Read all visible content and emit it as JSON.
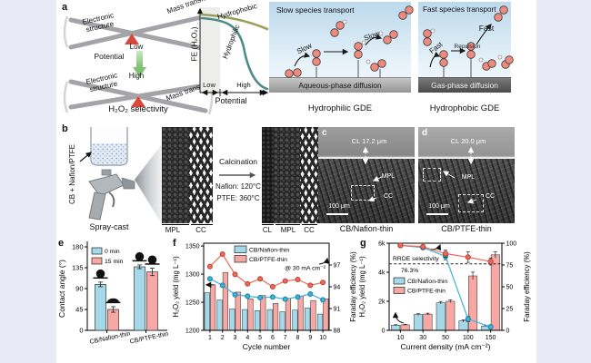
{
  "colors": {
    "bar_blue": "#a5d9ea",
    "bar_pink": "#f8a8a4",
    "line_blue": "#3eb1d5",
    "line_red": "#ec6a5e",
    "triangle_red": "#d8493c",
    "arrow_green": "#7fc172",
    "curve_olive": "#9aa05b",
    "curve_teal": "#4f8c88",
    "background": "#e8eaf5"
  },
  "figure": {
    "a": {
      "tag": "a",
      "seesaw": {
        "electronic_top": "Electronic structure",
        "mass_top": "Mass transfer",
        "low": "Low",
        "potential": "Potential",
        "high": "High",
        "electronic_bottom": "Electronic structure",
        "mass_bottom": "Mass transfer",
        "caption": "H₂O₂ selectivity"
      },
      "philic": {
        "title": "Slow species transport",
        "slow_a": "Slow",
        "slow_b": "Slow",
        "substrate": "Aqueous-phase diffusion",
        "caption": "Hydrophilic GDE"
      },
      "phobic": {
        "title": "Fast species transport",
        "fast_a": "Fast",
        "fast_b": "Fast",
        "repulsion": "Repulsion",
        "substrate": "Gas-phase diffusion",
        "caption": "Hydrophobic GDE"
      }
    },
    "b": {
      "tag": "b",
      "ink": "CB + Nafion/PTFE",
      "method": "Spray-cast",
      "calcination": "Calcination",
      "nafion": "Nafion: 120°C",
      "ptfe": "PTFE: 360°C",
      "s1_mpl": "MPL",
      "s1_cc": "CC",
      "s2_cl": "CL",
      "s2_mpl": "MPL",
      "s2_cc": "CC"
    },
    "c": {
      "tag": "c",
      "cl": "CL 17.2 μm",
      "mpl": "MPL",
      "cc": "CC",
      "scalebar": "100 μm",
      "caption": "CB/Nafion-thin"
    },
    "d": {
      "tag": "d",
      "cl": "CL 20.0 μm",
      "mpl": "MPL",
      "cc": "CC",
      "scalebar": "100 μm",
      "caption": "CB/PTFE-thin"
    },
    "e_tag": "e",
    "f_tag": "f",
    "g_tag": "g"
  },
  "chart_data": [
    {
      "id": "potential-fe-sketch",
      "type": "line",
      "ylabel": "FE (H₂O₂)",
      "xlabel": "Potential",
      "x_range_labels": [
        "Low",
        "High"
      ],
      "series": [
        {
          "name": "Hydrophobic",
          "color": "#9aa05b",
          "trend": "stays high, slight decline"
        },
        {
          "name": "Hydrophilic",
          "color": "#4f8c88",
          "trend": "sigmoidal drop at high potential"
        }
      ]
    },
    {
      "id": "e",
      "type": "bar",
      "ylabel": "Contact angle (°)",
      "ylim": [
        0,
        180
      ],
      "yticks": [
        0,
        45,
        90,
        135,
        180
      ],
      "categories": [
        "CB/Nafion-thin",
        "CB/PTFE-thin"
      ],
      "series": [
        {
          "name": "0 min",
          "color": "#a5d9ea",
          "values": [
            99,
            137
          ],
          "errors": [
            5,
            4
          ]
        },
        {
          "name": "15 min",
          "color": "#f8a8a4",
          "values": [
            45,
            126
          ],
          "errors": [
            6,
            8
          ]
        }
      ]
    },
    {
      "id": "f",
      "type": "bar+line",
      "xlabel": "Cycle number",
      "categories": [
        "1",
        "2",
        "3",
        "4",
        "5",
        "6",
        "7",
        "8",
        "9",
        "10"
      ],
      "ylabel_left": "H₂O₂ yield (mg L⁻¹)",
      "ylim_left": [
        1200,
        1350
      ],
      "yticks_left": [
        1200,
        1250,
        1300,
        1350
      ],
      "ylabel_right": "Faraday efficiency (%)",
      "ylim_right": [
        88,
        100
      ],
      "yticks_right": [
        88,
        91,
        94,
        97
      ],
      "annotation": "@ 30 mA cm⁻²",
      "bar_series": [
        {
          "name": "CB/Nafion-thin",
          "color": "#a5d9ea",
          "values": [
            1267,
            1254,
            1238,
            1237,
            1235,
            1237,
            1233,
            1236,
            1240,
            1229
          ]
        },
        {
          "name": "CB/PTFE-thin",
          "color": "#f8a8a4",
          "values": [
            1281,
            1303,
            1268,
            1256,
            1262,
            1248,
            1257,
            1261,
            1253,
            1256
          ]
        }
      ],
      "line_series": [
        {
          "name": "CB/Nafion-thin",
          "color": "#3eb1d5",
          "edge": "#1b7fa3",
          "values": [
            95.1,
            94.2,
            92.9,
            92.7,
            92.5,
            92.6,
            92.3,
            92.6,
            93.0,
            92.2
          ]
        },
        {
          "name": "CB/PTFE-thin",
          "color": "#ec6a5e",
          "edge": "#b8402f",
          "values": [
            96.8,
            98.5,
            95.7,
            94.4,
            95.1,
            94.0,
            94.8,
            95.0,
            94.2,
            94.6
          ]
        }
      ]
    },
    {
      "id": "g",
      "type": "bar+line",
      "xlabel": "Current density (mA cm⁻²)",
      "categories": [
        "10",
        "30",
        "50",
        "100",
        "150"
      ],
      "ylabel_left": "H₂O₂ yield (mg L⁻¹)",
      "ylim_left": [
        0,
        6000
      ],
      "yticks_left_labels": [
        "0",
        "2k",
        "4k",
        "6k"
      ],
      "yticks_left_values": [
        0,
        2000,
        4000,
        6000
      ],
      "ylabel_right": "Faraday efficiency (%)",
      "ylim_right": [
        0,
        100
      ],
      "yticks_right": [
        0,
        25,
        50,
        75,
        100
      ],
      "dashed_line": {
        "label": "RRDE selectivity",
        "value": 76.3,
        "value_text": "76.3%"
      },
      "bar_series": [
        {
          "name": "CB/Nafion-thin",
          "color": "#a5d9ea",
          "values": [
            350,
            1090,
            1900,
            650,
            300
          ],
          "errors": [
            40,
            60,
            90,
            70,
            40
          ]
        },
        {
          "name": "CB/PTFE-thin",
          "color": "#f8a8a4",
          "values": [
            380,
            1120,
            2000,
            3750,
            5200
          ],
          "errors": [
            40,
            60,
            90,
            260,
            220
          ]
        }
      ],
      "line_series": [
        {
          "name": "CB/Nafion-thin",
          "color": "#3eb1d5",
          "edge": "#1b7fa3",
          "values": [
            97.5,
            95,
            85,
            13,
            4
          ],
          "errors": [
            2,
            2,
            4,
            3,
            2
          ]
        },
        {
          "name": "CB/PTFE-thin",
          "color": "#ec6a5e",
          "edge": "#b8402f",
          "values": [
            97.5,
            96,
            88,
            84,
            79
          ],
          "errors": [
            2,
            2,
            4,
            6,
            4
          ]
        }
      ]
    }
  ]
}
